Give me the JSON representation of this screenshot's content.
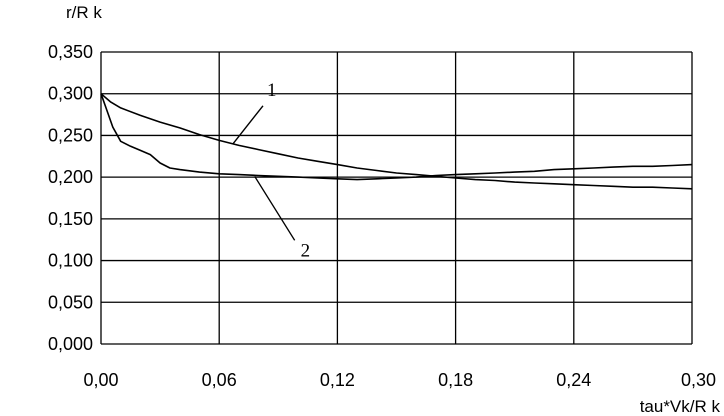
{
  "chart_data": {
    "type": "line",
    "title": "",
    "ylabel": "r/R k",
    "xlabel": "tau*Vk/R k",
    "xlim": [
      0,
      0.3
    ],
    "ylim": [
      0,
      0.35
    ],
    "x_ticks": [
      0,
      0.06,
      0.12,
      0.18,
      0.24,
      0.3
    ],
    "x_tick_labels": [
      "0,00",
      "0,06",
      "0,12",
      "0,18",
      "0,24",
      "0,30"
    ],
    "y_ticks": [
      0,
      0.05,
      0.1,
      0.15,
      0.2,
      0.25,
      0.3,
      0.35
    ],
    "y_tick_labels": [
      "0,000",
      "0,050",
      "0,100",
      "0,150",
      "0,200",
      "0,250",
      "0,300",
      "0,350"
    ],
    "grid": "on",
    "series": [
      {
        "name": "1",
        "points": [
          [
            0.0,
            0.3
          ],
          [
            0.005,
            0.29
          ],
          [
            0.01,
            0.283
          ],
          [
            0.02,
            0.274
          ],
          [
            0.03,
            0.266
          ],
          [
            0.04,
            0.259
          ],
          [
            0.05,
            0.251
          ],
          [
            0.06,
            0.244
          ],
          [
            0.07,
            0.238
          ],
          [
            0.08,
            0.233
          ],
          [
            0.09,
            0.228
          ],
          [
            0.1,
            0.223
          ],
          [
            0.11,
            0.219
          ],
          [
            0.12,
            0.215
          ],
          [
            0.13,
            0.211
          ],
          [
            0.14,
            0.208
          ],
          [
            0.15,
            0.205
          ],
          [
            0.16,
            0.203
          ],
          [
            0.17,
            0.201
          ],
          [
            0.18,
            0.199
          ],
          [
            0.19,
            0.197
          ],
          [
            0.2,
            0.196
          ],
          [
            0.21,
            0.194
          ],
          [
            0.22,
            0.193
          ],
          [
            0.23,
            0.192
          ],
          [
            0.24,
            0.191
          ],
          [
            0.25,
            0.19
          ],
          [
            0.26,
            0.189
          ],
          [
            0.27,
            0.188
          ],
          [
            0.28,
            0.188
          ],
          [
            0.29,
            0.187
          ],
          [
            0.3,
            0.186
          ]
        ]
      },
      {
        "name": "2",
        "points": [
          [
            0.0,
            0.3
          ],
          [
            0.003,
            0.28
          ],
          [
            0.006,
            0.26
          ],
          [
            0.01,
            0.243
          ],
          [
            0.015,
            0.237
          ],
          [
            0.02,
            0.232
          ],
          [
            0.025,
            0.227
          ],
          [
            0.03,
            0.217
          ],
          [
            0.035,
            0.211
          ],
          [
            0.04,
            0.209
          ],
          [
            0.05,
            0.206
          ],
          [
            0.06,
            0.204
          ],
          [
            0.07,
            0.203
          ],
          [
            0.08,
            0.202
          ],
          [
            0.09,
            0.201
          ],
          [
            0.1,
            0.2
          ],
          [
            0.11,
            0.199
          ],
          [
            0.12,
            0.198
          ],
          [
            0.13,
            0.197
          ],
          [
            0.14,
            0.198
          ],
          [
            0.15,
            0.199
          ],
          [
            0.16,
            0.2
          ],
          [
            0.17,
            0.202
          ],
          [
            0.18,
            0.203
          ],
          [
            0.19,
            0.204
          ],
          [
            0.2,
            0.205
          ],
          [
            0.21,
            0.206
          ],
          [
            0.22,
            0.207
          ],
          [
            0.23,
            0.209
          ],
          [
            0.24,
            0.21
          ],
          [
            0.25,
            0.211
          ],
          [
            0.26,
            0.212
          ],
          [
            0.27,
            0.213
          ],
          [
            0.28,
            0.213
          ],
          [
            0.29,
            0.214
          ],
          [
            0.3,
            0.215
          ]
        ]
      }
    ],
    "annotations": [
      {
        "text": "1",
        "series": "1",
        "x": 0.067,
        "y": 0.24
      },
      {
        "text": "2",
        "series": "2",
        "x": 0.078,
        "y": 0.201
      }
    ]
  }
}
